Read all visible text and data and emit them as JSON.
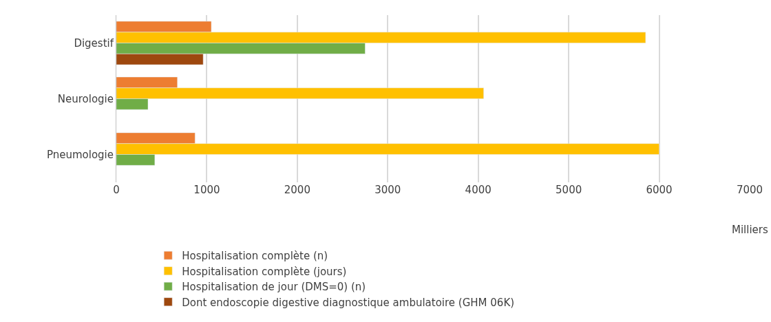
{
  "chart_data": {
    "type": "bar",
    "orientation": "horizontal",
    "categories": [
      "Digestif",
      "Neurologie",
      "Pneumologie"
    ],
    "series": [
      {
        "name": "Hospitalisation complète (n)",
        "color": "#ed7d31",
        "values": [
          1050,
          675,
          870
        ]
      },
      {
        "name": "Hospitalisation complète (jours)",
        "color": "#ffc000",
        "values": [
          5850,
          4060,
          6000
        ]
      },
      {
        "name": "Hospitalisation de jour (DMS=0) (n)",
        "color": "#70ad47",
        "values": [
          2750,
          350,
          425
        ]
      },
      {
        "name": "Dont endoscopie digestive diagnostique ambulatoire (GHM 06K)",
        "color": "#9e480e",
        "values": [
          960,
          null,
          null
        ]
      }
    ],
    "xlim": [
      0,
      7000
    ],
    "xticks": [
      0,
      1000,
      2000,
      3000,
      4000,
      5000,
      6000,
      7000
    ],
    "xlabel": "Milliers",
    "grid": "x",
    "legend": "bottom"
  }
}
